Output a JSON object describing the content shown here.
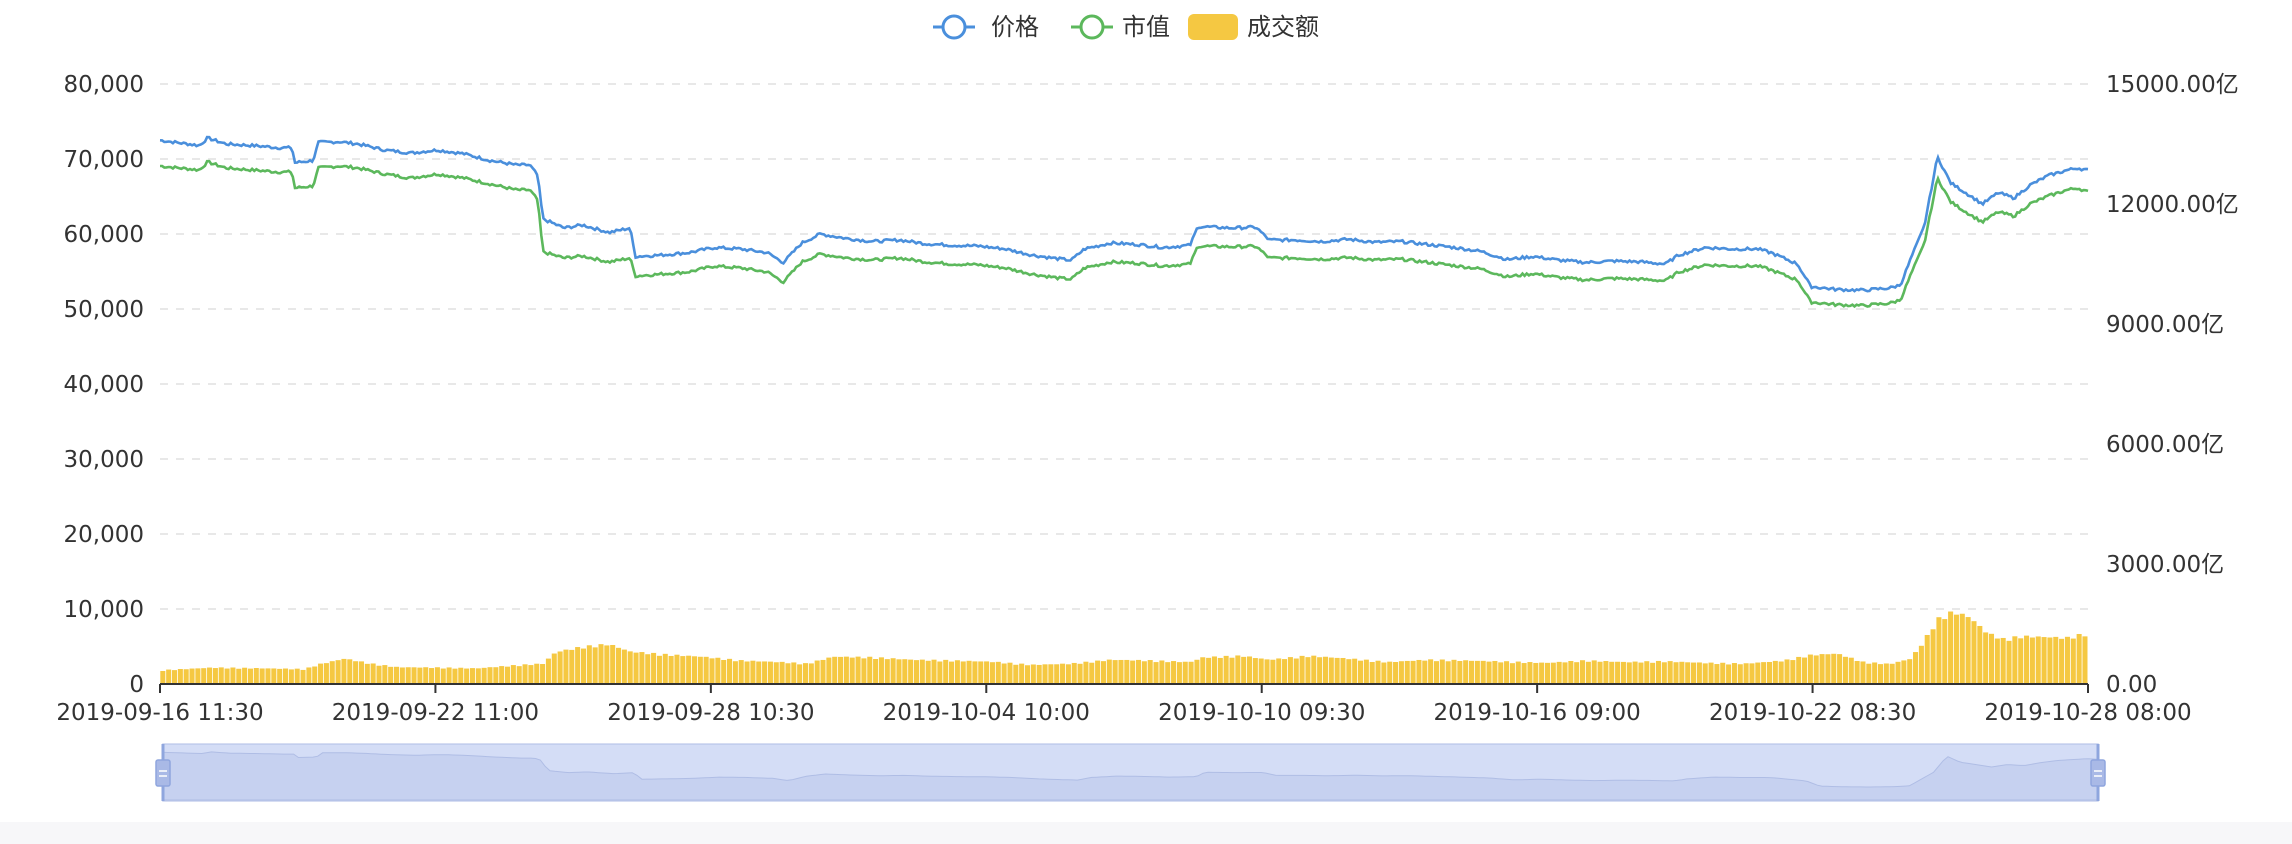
{
  "chart_data": {
    "type": "line",
    "legend": [
      {
        "name": "价格",
        "kind": "line",
        "color": "#4a8fdc"
      },
      {
        "name": "市值",
        "kind": "line",
        "color": "#5cb85c"
      },
      {
        "name": "成交额",
        "kind": "bar",
        "color": "#f5c842"
      }
    ],
    "legend_position": "top-center",
    "x_ticks": [
      "2019-09-16 11:30",
      "2019-09-22 11:00",
      "2019-09-28 10:30",
      "2019-10-04 10:00",
      "2019-10-10 09:30",
      "2019-10-16 09:00",
      "2019-10-22 08:30",
      "2019-10-28 08:00"
    ],
    "y_left": {
      "min": 0,
      "max": 80000,
      "ticks": [
        "0",
        "10,000",
        "20,000",
        "30,000",
        "40,000",
        "50,000",
        "60,000",
        "70,000",
        "80,000"
      ]
    },
    "y_right": {
      "min": 0,
      "max": 15000,
      "unit": "亿",
      "ticks": [
        "0.00",
        "3000.00亿",
        "6000.00亿",
        "9000.00亿",
        "12000.00亿",
        "15000.00亿"
      ]
    },
    "grid": "dashed horizontal",
    "series": [
      {
        "name": "价格",
        "axis": "left",
        "values": [
          [
            0,
            72500
          ],
          [
            1.5,
            71800
          ],
          [
            1.8,
            72800
          ],
          [
            2.5,
            72000
          ],
          [
            3.5,
            71800
          ],
          [
            4.5,
            71500
          ],
          [
            5.0,
            71500
          ],
          [
            5.1,
            69500
          ],
          [
            5.8,
            69800
          ],
          [
            6.0,
            72200
          ],
          [
            6.8,
            72300
          ],
          [
            7.5,
            72000
          ],
          [
            8.5,
            71200
          ],
          [
            9.5,
            70800
          ],
          [
            10.5,
            71200
          ],
          [
            11.5,
            70700
          ],
          [
            12.5,
            69800
          ],
          [
            13.5,
            69200
          ],
          [
            14.0,
            69200
          ],
          [
            14.3,
            67800
          ],
          [
            14.5,
            62000
          ],
          [
            15.3,
            60800
          ],
          [
            16.0,
            61200
          ],
          [
            17.0,
            60200
          ],
          [
            17.8,
            60800
          ],
          [
            18.0,
            57000
          ],
          [
            19.0,
            57200
          ],
          [
            20.0,
            57500
          ],
          [
            21.0,
            58200
          ],
          [
            22.0,
            58000
          ],
          [
            23.0,
            57500
          ],
          [
            23.6,
            56200
          ],
          [
            24.3,
            58800
          ],
          [
            25.0,
            60000
          ],
          [
            26.0,
            59400
          ],
          [
            27.0,
            59000
          ],
          [
            28.0,
            59200
          ],
          [
            29.0,
            58700
          ],
          [
            30.0,
            58500
          ],
          [
            31.0,
            58400
          ],
          [
            32.0,
            58000
          ],
          [
            33.0,
            57200
          ],
          [
            34.0,
            56700
          ],
          [
            34.5,
            56500
          ],
          [
            35.0,
            58000
          ],
          [
            36.0,
            58800
          ],
          [
            37.0,
            58600
          ],
          [
            38.0,
            58200
          ],
          [
            39.0,
            58500
          ],
          [
            39.3,
            61000
          ],
          [
            40.5,
            60800
          ],
          [
            41.5,
            60900
          ],
          [
            42.0,
            59200
          ],
          [
            43.0,
            59200
          ],
          [
            44.0,
            59000
          ],
          [
            45.0,
            59300
          ],
          [
            46.0,
            58900
          ],
          [
            47.0,
            59000
          ],
          [
            48.0,
            58600
          ],
          [
            49.0,
            58200
          ],
          [
            50.0,
            57700
          ],
          [
            51.0,
            56600
          ],
          [
            52.0,
            57000
          ],
          [
            53.0,
            56500
          ],
          [
            54.0,
            56200
          ],
          [
            55.0,
            56400
          ],
          [
            56.0,
            56300
          ],
          [
            57.0,
            56000
          ],
          [
            57.5,
            57200
          ],
          [
            58.5,
            58200
          ],
          [
            59.5,
            58000
          ],
          [
            60.5,
            58000
          ],
          [
            61.0,
            57500
          ],
          [
            62.0,
            56000
          ],
          [
            62.5,
            53000
          ],
          [
            63.5,
            52600
          ],
          [
            64.5,
            52500
          ],
          [
            65.5,
            52800
          ],
          [
            65.9,
            53200
          ],
          [
            66.3,
            56800
          ],
          [
            66.8,
            61000
          ],
          [
            67.3,
            70300
          ],
          [
            67.8,
            66800
          ],
          [
            68.5,
            65200
          ],
          [
            69.0,
            64000
          ],
          [
            69.6,
            65500
          ],
          [
            70.2,
            64800
          ],
          [
            70.8,
            66500
          ],
          [
            71.5,
            67800
          ],
          [
            72.2,
            68500
          ],
          [
            72.6,
            68800
          ],
          [
            73.0,
            68500
          ]
        ]
      },
      {
        "name": "市值",
        "axis": "right",
        "values": [
          [
            0,
            12950
          ],
          [
            1.5,
            12850
          ],
          [
            1.8,
            13050
          ],
          [
            2.5,
            12900
          ],
          [
            3.5,
            12850
          ],
          [
            4.5,
            12800
          ],
          [
            5.0,
            12800
          ],
          [
            5.1,
            12400
          ],
          [
            5.8,
            12450
          ],
          [
            6.0,
            12900
          ],
          [
            6.8,
            12950
          ],
          [
            7.5,
            12900
          ],
          [
            8.5,
            12750
          ],
          [
            9.5,
            12650
          ],
          [
            10.5,
            12750
          ],
          [
            11.5,
            12650
          ],
          [
            12.5,
            12500
          ],
          [
            13.5,
            12350
          ],
          [
            14.0,
            12350
          ],
          [
            14.3,
            12100
          ],
          [
            14.5,
            10800
          ],
          [
            15.3,
            10650
          ],
          [
            16.0,
            10700
          ],
          [
            17.0,
            10550
          ],
          [
            17.8,
            10650
          ],
          [
            18.0,
            10200
          ],
          [
            19.0,
            10250
          ],
          [
            20.0,
            10300
          ],
          [
            21.0,
            10450
          ],
          [
            22.0,
            10400
          ],
          [
            23.0,
            10300
          ],
          [
            23.6,
            10050
          ],
          [
            24.3,
            10550
          ],
          [
            25.0,
            10750
          ],
          [
            26.0,
            10650
          ],
          [
            27.0,
            10600
          ],
          [
            28.0,
            10650
          ],
          [
            29.0,
            10550
          ],
          [
            30.0,
            10500
          ],
          [
            31.0,
            10480
          ],
          [
            32.0,
            10400
          ],
          [
            33.0,
            10250
          ],
          [
            34.0,
            10150
          ],
          [
            34.5,
            10120
          ],
          [
            35.0,
            10400
          ],
          [
            36.0,
            10550
          ],
          [
            37.0,
            10520
          ],
          [
            38.0,
            10450
          ],
          [
            39.0,
            10500
          ],
          [
            39.3,
            10950
          ],
          [
            40.5,
            10930
          ],
          [
            41.5,
            10940
          ],
          [
            42.0,
            10650
          ],
          [
            43.0,
            10650
          ],
          [
            44.0,
            10620
          ],
          [
            45.0,
            10660
          ],
          [
            46.0,
            10600
          ],
          [
            47.0,
            10620
          ],
          [
            48.0,
            10540
          ],
          [
            49.0,
            10460
          ],
          [
            50.0,
            10380
          ],
          [
            51.0,
            10180
          ],
          [
            52.0,
            10260
          ],
          [
            53.0,
            10160
          ],
          [
            54.0,
            10100
          ],
          [
            55.0,
            10140
          ],
          [
            56.0,
            10120
          ],
          [
            57.0,
            10080
          ],
          [
            57.5,
            10300
          ],
          [
            58.5,
            10480
          ],
          [
            59.5,
            10450
          ],
          [
            60.5,
            10450
          ],
          [
            61.0,
            10350
          ],
          [
            62.0,
            10100
          ],
          [
            62.5,
            9550
          ],
          [
            63.5,
            9480
          ],
          [
            64.5,
            9460
          ],
          [
            65.5,
            9520
          ],
          [
            65.9,
            9600
          ],
          [
            66.3,
            10250
          ],
          [
            66.8,
            11000
          ],
          [
            67.3,
            12650
          ],
          [
            67.8,
            12050
          ],
          [
            68.5,
            11750
          ],
          [
            69.0,
            11550
          ],
          [
            69.6,
            11800
          ],
          [
            70.2,
            11700
          ],
          [
            70.8,
            12000
          ],
          [
            71.5,
            12200
          ],
          [
            72.2,
            12350
          ],
          [
            72.6,
            12400
          ],
          [
            73.0,
            12300
          ]
        ]
      },
      {
        "name": "成交额",
        "axis": "right",
        "type": "bar",
        "values": [
          [
            0,
            350
          ],
          [
            2,
            420
          ],
          [
            4,
            400
          ],
          [
            5.5,
            380
          ],
          [
            6,
            500
          ],
          [
            7,
            650
          ],
          [
            8,
            520
          ],
          [
            9,
            430
          ],
          [
            10.5,
            420
          ],
          [
            12,
            400
          ],
          [
            13.5,
            480
          ],
          [
            14.5,
            520
          ],
          [
            15,
            820
          ],
          [
            16,
            950
          ],
          [
            17,
            1020
          ],
          [
            17.8,
            830
          ],
          [
            19,
            760
          ],
          [
            20.5,
            700
          ],
          [
            22,
            600
          ],
          [
            23.5,
            560
          ],
          [
            24.5,
            520
          ],
          [
            25.5,
            700
          ],
          [
            27,
            680
          ],
          [
            28.5,
            620
          ],
          [
            30,
            600
          ],
          [
            31.5,
            570
          ],
          [
            33,
            490
          ],
          [
            34.5,
            520
          ],
          [
            36,
            620
          ],
          [
            37.5,
            600
          ],
          [
            39,
            560
          ],
          [
            39.5,
            680
          ],
          [
            41,
            720
          ],
          [
            42,
            620
          ],
          [
            43.5,
            720
          ],
          [
            45,
            650
          ],
          [
            46.5,
            560
          ],
          [
            48,
            620
          ],
          [
            49.5,
            600
          ],
          [
            51,
            570
          ],
          [
            52.5,
            540
          ],
          [
            54,
            600
          ],
          [
            55.5,
            560
          ],
          [
            57,
            580
          ],
          [
            58.5,
            540
          ],
          [
            60,
            520
          ],
          [
            61.5,
            600
          ],
          [
            62.5,
            740
          ],
          [
            63.5,
            780
          ],
          [
            64.5,
            560
          ],
          [
            65.5,
            510
          ],
          [
            66.3,
            650
          ],
          [
            66.8,
            1100
          ],
          [
            67.3,
            1650
          ],
          [
            67.9,
            1850
          ],
          [
            68.5,
            1720
          ],
          [
            69.2,
            1300
          ],
          [
            69.8,
            1150
          ],
          [
            70.5,
            1220
          ],
          [
            71.5,
            1200
          ],
          [
            72.2,
            1180
          ],
          [
            73,
            1300
          ]
        ]
      }
    ],
    "x_range": [
      0,
      73
    ]
  },
  "ui": {
    "zoom_slider": {
      "start": 0,
      "end": 100
    }
  }
}
